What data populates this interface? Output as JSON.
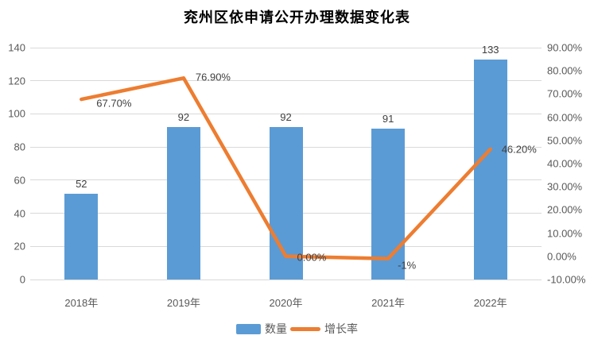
{
  "title": "兖州区依申请公开办理数据变化表",
  "chart_data": {
    "type": "bar+line",
    "title": "兖州区依申请公开办理数据变化表",
    "categories": [
      "2018年",
      "2019年",
      "2020年",
      "2021年",
      "2022年"
    ],
    "series": [
      {
        "name": "数量",
        "type": "bar",
        "axis": "left",
        "color": "#5b9bd5",
        "values": [
          52,
          92,
          92,
          91,
          133
        ],
        "labels": [
          "52",
          "92",
          "92",
          "91",
          "133"
        ]
      },
      {
        "name": "增长率",
        "type": "line",
        "axis": "right",
        "color": "#ed7d31",
        "values": [
          67.7,
          76.9,
          0,
          -1,
          46.2
        ],
        "labels": [
          "67.70%",
          "76.90%",
          "0.00%",
          "-1%",
          "46.20%"
        ]
      }
    ],
    "left_axis": {
      "min": 0,
      "max": 140,
      "step": 20,
      "ticks": [
        "0",
        "20",
        "40",
        "60",
        "80",
        "100",
        "120",
        "140"
      ]
    },
    "right_axis": {
      "min": -10,
      "max": 90,
      "step": 10,
      "ticks": [
        "90.00%",
        "80.00%",
        "70.00%",
        "60.00%",
        "50.00%",
        "40.00%",
        "30.00%",
        "20.00%",
        "10.00%",
        "0.00%",
        "-10.00%"
      ]
    },
    "grid": "horizontal",
    "legend_position": "bottom",
    "legend": [
      {
        "label": "数量",
        "type": "bar",
        "color": "#5b9bd5"
      },
      {
        "label": "增长率",
        "type": "line",
        "color": "#ed7d31"
      }
    ]
  },
  "colors": {
    "bar": "#5b9bd5",
    "line": "#ed7d31",
    "gridline": "#d9d9d9",
    "axis_text": "#595959",
    "data_label_text": "#404040",
    "background": "#ffffff"
  }
}
